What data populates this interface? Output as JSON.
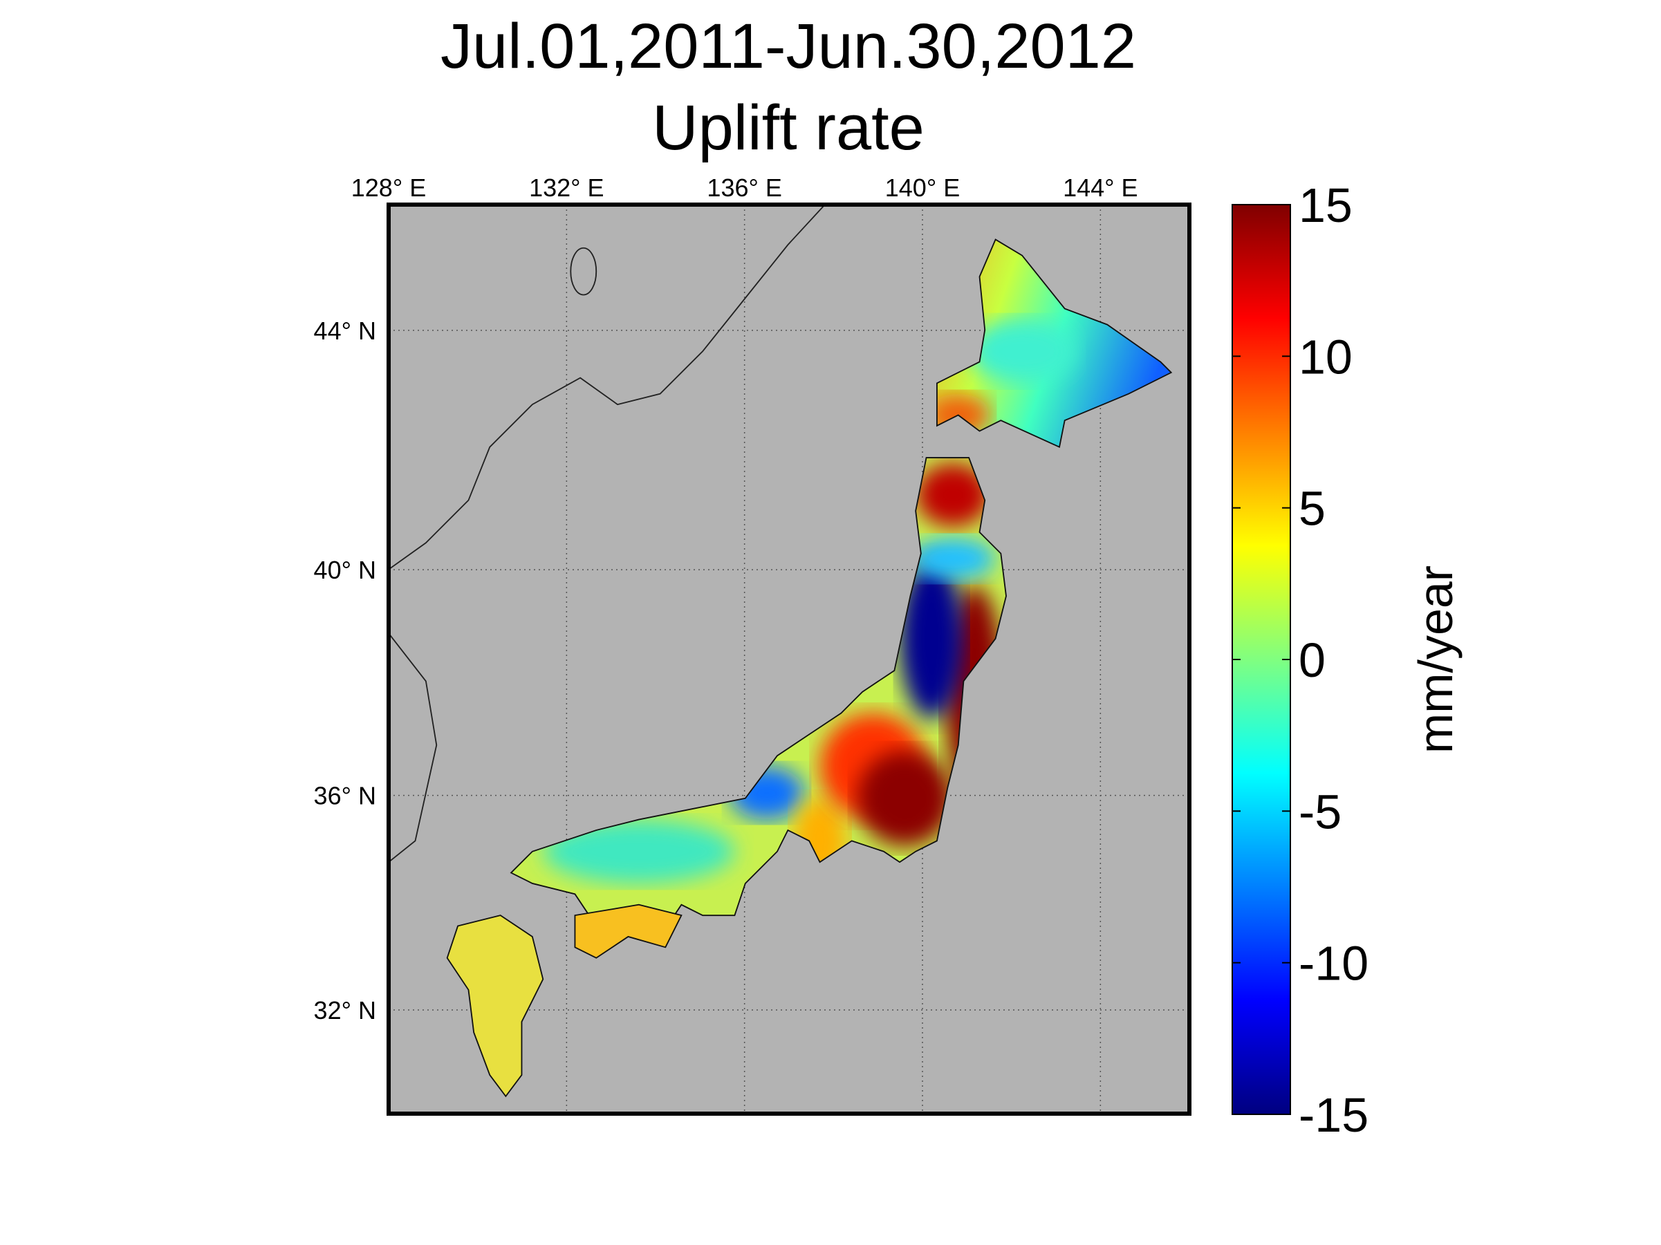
{
  "chart_data": {
    "type": "map",
    "title": [
      "Jul.01,2011-Jun.30,2012",
      "Uplift rate"
    ],
    "projection": "mercator",
    "xlim": [
      128,
      146
    ],
    "ylim": [
      30,
      46
    ],
    "xticks": [
      {
        "value": 128,
        "label": "128° E"
      },
      {
        "value": 132,
        "label": "132° E"
      },
      {
        "value": 136,
        "label": "136° E"
      },
      {
        "value": 140,
        "label": "140° E"
      },
      {
        "value": 144,
        "label": "144° E"
      }
    ],
    "yticks": [
      {
        "value": 32,
        "label": "32° N"
      },
      {
        "value": 36,
        "label": "36° N"
      },
      {
        "value": 40,
        "label": "40° N"
      },
      {
        "value": 44,
        "label": "44° N"
      }
    ],
    "grid": true,
    "colorbar": {
      "label": "mm/year",
      "colormap": "jet",
      "clim": [
        -15,
        15
      ],
      "ticks": [
        -15,
        -10,
        -5,
        0,
        5,
        10,
        15
      ]
    }
  }
}
